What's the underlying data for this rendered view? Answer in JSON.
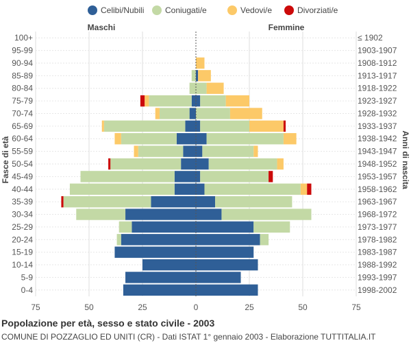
{
  "chart_data": {
    "type": "bar",
    "title": "Popolazione per età, sesso e stato civile - 2003",
    "subtitle": "COMUNE DI POZZAGLIO ED UNITI (CR) - Dati ISTAT 1° gennaio 2003 - Elaborazione TUTTITALIA.IT",
    "left_label": "Maschi",
    "right_label": "Femmine",
    "ylabel_left": "Fasce di età",
    "ylabel_right": "Anni di nascita",
    "xlim": [
      -75,
      75
    ],
    "xticks": [
      -75,
      -50,
      -25,
      0,
      25,
      50,
      75
    ],
    "xtick_labels": [
      "75",
      "50",
      "25",
      "0",
      "25",
      "50",
      "75"
    ],
    "categories": [
      "100+",
      "95-99",
      "90-94",
      "85-89",
      "80-84",
      "75-79",
      "70-74",
      "65-69",
      "60-64",
      "55-59",
      "50-54",
      "45-49",
      "40-44",
      "35-39",
      "30-34",
      "25-29",
      "20-24",
      "15-19",
      "10-14",
      "5-9",
      "0-4"
    ],
    "birth_years": [
      "≤ 1902",
      "1903-1907",
      "1908-1912",
      "1913-1917",
      "1918-1922",
      "1923-1927",
      "1928-1932",
      "1933-1937",
      "1938-1942",
      "1943-1947",
      "1948-1952",
      "1953-1957",
      "1958-1962",
      "1963-1967",
      "1968-1972",
      "1973-1977",
      "1978-1982",
      "1983-1987",
      "1988-1992",
      "1993-1997",
      "1998-2002"
    ],
    "series": [
      {
        "name": "Celibi/Nubili",
        "color": "#2f5f97",
        "male": [
          0,
          0,
          0,
          0,
          0,
          2,
          3,
          5,
          9,
          6,
          7,
          10,
          10,
          21,
          33,
          30,
          35,
          38,
          25,
          33,
          34
        ],
        "female": [
          0,
          0,
          0,
          1,
          0,
          2,
          0,
          2,
          5,
          3,
          6,
          2,
          4,
          9,
          12,
          27,
          30,
          27,
          29,
          21,
          29
        ]
      },
      {
        "name": "Coniugati/e",
        "color": "#c3d9a5",
        "male": [
          0,
          0,
          0,
          2,
          3,
          20,
          14,
          38,
          26,
          21,
          33,
          44,
          49,
          41,
          23,
          6,
          2,
          0,
          0,
          0,
          0
        ],
        "female": [
          0,
          0,
          0,
          0,
          5,
          12,
          16,
          23,
          36,
          24,
          32,
          32,
          45,
          36,
          42,
          17,
          4,
          0,
          0,
          0,
          0
        ]
      },
      {
        "name": "Vedovi/e",
        "color": "#fcc968",
        "male": [
          0,
          0,
          0,
          0,
          0,
          2,
          2,
          1,
          3,
          2,
          0,
          0,
          0,
          0,
          0,
          0,
          0,
          0,
          0,
          0,
          0
        ],
        "female": [
          0,
          0,
          4,
          6,
          8,
          11,
          15,
          16,
          6,
          2,
          3,
          0,
          3,
          0,
          0,
          0,
          0,
          0,
          0,
          0,
          0
        ]
      },
      {
        "name": "Divorziati/e",
        "color": "#cc0a0a",
        "male": [
          0,
          0,
          0,
          0,
          0,
          2,
          0,
          0,
          0,
          0,
          1,
          0,
          0,
          1,
          0,
          0,
          0,
          0,
          0,
          0,
          0
        ],
        "female": [
          0,
          0,
          0,
          0,
          0,
          0,
          0,
          1,
          0,
          0,
          0,
          2,
          2,
          0,
          0,
          0,
          0,
          0,
          0,
          0,
          0
        ]
      }
    ]
  }
}
